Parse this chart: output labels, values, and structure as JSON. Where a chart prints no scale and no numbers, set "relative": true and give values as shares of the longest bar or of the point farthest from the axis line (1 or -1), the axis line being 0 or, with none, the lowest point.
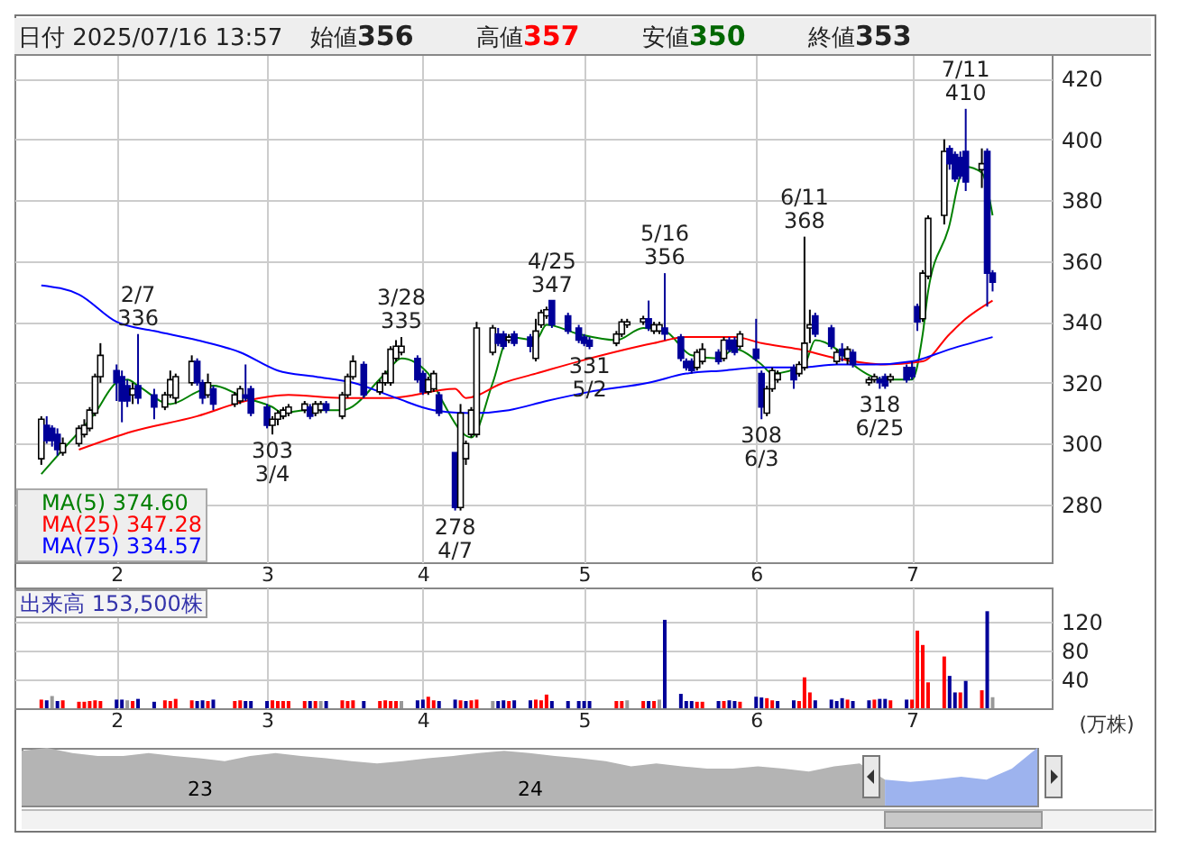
{
  "chart_data": [
    {
      "type": "candlestick",
      "title": "日付 2025/07/16 13:57",
      "x": [
        "2025-01-20",
        "2025-01-21",
        "2025-01-22",
        "2025-01-23",
        "2025-01-24",
        "2025-01-27",
        "2025-01-28",
        "2025-01-29",
        "2025-01-30",
        "2025-01-31",
        "2025-02-03",
        "2025-02-04",
        "2025-02-05",
        "2025-02-06",
        "2025-02-07",
        "2025-02-10",
        "2025-02-12",
        "2025-02-13",
        "2025-02-14",
        "2025-02-17",
        "2025-02-18",
        "2025-02-19",
        "2025-02-20",
        "2025-02-21",
        "2025-02-25",
        "2025-02-26",
        "2025-02-27",
        "2025-02-28",
        "2025-03-03",
        "2025-03-04",
        "2025-03-05",
        "2025-03-06",
        "2025-03-07",
        "2025-03-10",
        "2025-03-11",
        "2025-03-12",
        "2025-03-13",
        "2025-03-14",
        "2025-03-17",
        "2025-03-18",
        "2025-03-19",
        "2025-03-21",
        "2025-03-24",
        "2025-03-25",
        "2025-03-26",
        "2025-03-27",
        "2025-03-28",
        "2025-03-31",
        "2025-04-01",
        "2025-04-02",
        "2025-04-03",
        "2025-04-04",
        "2025-04-07",
        "2025-04-08",
        "2025-04-09",
        "2025-04-10",
        "2025-04-11",
        "2025-04-14",
        "2025-04-15",
        "2025-04-16",
        "2025-04-17",
        "2025-04-18",
        "2025-04-21",
        "2025-04-22",
        "2025-04-23",
        "2025-04-24",
        "2025-04-25",
        "2025-04-28",
        "2025-04-30",
        "2025-05-01",
        "2025-05-02",
        "2025-05-07",
        "2025-05-08",
        "2025-05-09",
        "2025-05-12",
        "2025-05-13",
        "2025-05-14",
        "2025-05-15",
        "2025-05-16",
        "2025-05-19",
        "2025-05-20",
        "2025-05-21",
        "2025-05-22",
        "2025-05-23",
        "2025-05-26",
        "2025-05-27",
        "2025-05-28",
        "2025-05-29",
        "2025-05-30",
        "2025-06-02",
        "2025-06-03",
        "2025-06-04",
        "2025-06-05",
        "2025-06-06",
        "2025-06-09",
        "2025-06-10",
        "2025-06-11",
        "2025-06-12",
        "2025-06-13",
        "2025-06-16",
        "2025-06-17",
        "2025-06-18",
        "2025-06-19",
        "2025-06-20",
        "2025-06-23",
        "2025-06-24",
        "2025-06-25",
        "2025-06-26",
        "2025-06-27",
        "2025-06-30",
        "2025-07-01",
        "2025-07-02",
        "2025-07-03",
        "2025-07-04",
        "2025-07-07",
        "2025-07-08",
        "2025-07-09",
        "2025-07-10",
        "2025-07-11",
        "2025-07-14",
        "2025-07-15",
        "2025-07-16"
      ],
      "ohlc": [
        [
          295,
          309,
          293,
          308
        ],
        [
          306,
          309,
          300,
          301
        ],
        [
          305,
          306,
          299,
          301
        ],
        [
          303,
          305,
          296,
          298
        ],
        [
          297,
          302,
          296,
          300
        ],
        [
          300,
          306,
          299,
          305
        ],
        [
          303,
          308,
          302,
          306
        ],
        [
          305,
          312,
          304,
          311
        ],
        [
          310,
          323,
          309,
          322
        ],
        [
          322,
          333,
          320,
          329
        ],
        [
          324,
          326,
          314,
          320
        ],
        [
          322,
          324,
          307,
          314
        ],
        [
          319,
          321,
          312,
          314
        ],
        [
          316,
          320,
          313,
          318
        ],
        [
          319,
          336,
          313,
          315
        ],
        [
          316,
          318,
          308,
          312
        ],
        [
          312,
          317,
          311,
          316
        ],
        [
          316,
          324,
          315,
          321
        ],
        [
          315,
          323,
          313,
          322
        ],
        [
          320,
          329,
          319,
          327
        ],
        [
          327,
          328,
          319,
          320
        ],
        [
          320,
          321,
          313,
          315
        ],
        [
          316,
          323,
          315,
          320
        ],
        [
          318,
          319,
          311,
          313
        ],
        [
          313,
          317,
          312,
          316
        ],
        [
          314,
          319,
          313,
          318
        ],
        [
          316,
          326,
          314,
          315
        ],
        [
          318,
          319,
          309,
          310
        ],
        [
          312,
          313,
          305,
          306
        ],
        [
          306,
          309,
          303,
          308
        ],
        [
          308,
          311,
          306,
          310
        ],
        [
          309,
          312,
          308,
          311
        ],
        [
          310,
          313,
          309,
          312
        ],
        [
          311,
          314,
          310,
          313
        ],
        [
          312,
          313,
          308,
          309
        ],
        [
          310,
          314,
          309,
          313
        ],
        [
          311,
          314,
          310,
          313
        ],
        [
          313,
          314,
          310,
          311
        ],
        [
          309,
          317,
          308,
          316
        ],
        [
          316,
          323,
          315,
          322
        ],
        [
          322,
          329,
          321,
          327
        ],
        [
          326,
          327,
          315,
          316
        ],
        [
          317,
          321,
          316,
          320
        ],
        [
          320,
          324,
          319,
          323
        ],
        [
          320,
          332,
          319,
          331
        ],
        [
          328,
          334,
          327,
          332
        ],
        [
          330,
          335,
          329,
          332
        ],
        [
          328,
          329,
          320,
          321
        ],
        [
          323,
          324,
          316,
          317
        ],
        [
          317,
          322,
          316,
          321
        ],
        [
          318,
          324,
          317,
          323
        ],
        [
          316,
          317,
          309,
          310
        ],
        [
          297,
          297,
          278,
          279
        ],
        [
          279,
          313,
          278,
          310
        ],
        [
          295,
          301,
          293,
          300
        ],
        [
          303,
          312,
          302,
          311
        ],
        [
          303,
          340,
          302,
          338
        ],
        [
          330,
          339,
          329,
          338
        ],
        [
          336,
          338,
          332,
          333
        ],
        [
          336,
          337,
          331,
          332
        ],
        [
          334,
          336,
          333,
          335
        ],
        [
          336,
          337,
          332,
          333
        ],
        [
          335,
          336,
          330,
          332
        ],
        [
          328,
          341,
          327,
          337
        ],
        [
          339,
          344,
          338,
          343
        ],
        [
          342,
          345,
          341,
          344
        ],
        [
          347,
          347,
          338,
          339
        ],
        [
          342,
          343,
          336,
          337
        ],
        [
          338,
          339,
          333,
          334
        ],
        [
          335,
          336,
          332,
          333
        ],
        [
          334,
          335,
          331,
          332
        ],
        [
          333,
          337,
          332,
          336
        ],
        [
          336,
          341,
          335,
          340
        ],
        [
          339,
          341,
          338,
          340
        ],
        [
          340,
          342,
          339,
          341
        ],
        [
          341,
          347,
          337,
          338
        ],
        [
          337,
          340,
          336,
          339
        ],
        [
          337,
          340,
          336,
          339
        ],
        [
          338,
          356,
          334,
          336
        ],
        [
          335,
          336,
          327,
          328
        ],
        [
          327,
          328,
          324,
          325
        ],
        [
          327,
          328,
          323,
          324
        ],
        [
          325,
          331,
          324,
          330
        ],
        [
          327,
          333,
          326,
          331
        ],
        [
          330,
          331,
          326,
          327
        ],
        [
          328,
          335,
          327,
          334
        ],
        [
          334,
          335,
          330,
          331
        ],
        [
          334,
          335,
          329,
          330
        ],
        [
          332,
          337,
          331,
          336
        ],
        [
          331,
          341,
          327,
          328
        ],
        [
          323,
          324,
          308,
          312
        ],
        [
          310,
          319,
          309,
          318
        ],
        [
          318,
          325,
          317,
          324
        ],
        [
          321,
          324,
          320,
          323
        ],
        [
          325,
          326,
          318,
          321
        ],
        [
          323,
          327,
          322,
          326
        ],
        [
          325,
          368,
          324,
          333
        ],
        [
          338,
          344,
          333,
          339
        ],
        [
          342,
          343,
          335,
          336
        ],
        [
          338,
          339,
          331,
          332
        ],
        [
          327,
          331,
          326,
          330
        ],
        [
          331,
          333,
          327,
          329
        ],
        [
          328,
          332,
          326,
          331
        ],
        [
          330,
          331,
          325,
          326
        ],
        [
          320,
          322,
          319,
          321
        ],
        [
          321,
          323,
          320,
          322
        ],
        [
          321,
          322,
          318,
          320
        ],
        [
          322,
          323,
          318,
          319
        ],
        [
          321,
          323,
          320,
          322
        ],
        [
          325,
          326,
          320,
          321
        ],
        [
          325,
          327,
          321,
          322
        ],
        [
          345,
          346,
          337,
          340
        ],
        [
          341,
          357,
          340,
          356
        ],
        [
          355,
          375,
          354,
          374
        ],
        [
          375,
          400,
          372,
          396
        ],
        [
          397,
          398,
          390,
          392
        ],
        [
          395,
          396,
          386,
          387
        ],
        [
          394,
          396,
          387,
          388
        ],
        [
          396,
          410,
          383,
          386
        ],
        [
          390,
          397,
          384,
          392
        ],
        [
          396,
          397,
          345,
          356
        ],
        [
          356,
          357,
          350,
          353
        ]
      ],
      "series": [
        {
          "name": "MA(5) 374.60",
          "type": "line",
          "color": "#008000",
          "x": [
            "2025-01-20",
            "2025-01-24",
            "2025-01-30",
            "2025-02-03",
            "2025-02-05",
            "2025-02-07",
            "2025-02-13",
            "2025-02-18",
            "2025-02-21",
            "2025-02-27",
            "2025-03-04",
            "2025-03-06",
            "2025-03-10",
            "2025-03-17",
            "2025-03-25",
            "2025-03-28",
            "2025-04-02",
            "2025-04-04",
            "2025-04-10",
            "2025-04-14",
            "2025-04-17",
            "2025-04-22",
            "2025-04-24",
            "2025-04-30",
            "2025-05-07",
            "2025-05-12",
            "2025-05-16",
            "2025-05-21",
            "2025-05-26",
            "2025-05-29",
            "2025-06-03",
            "2025-06-05",
            "2025-06-11",
            "2025-06-13",
            "2025-06-17",
            "2025-06-20",
            "2025-06-26",
            "2025-07-01",
            "2025-07-03",
            "2025-07-04",
            "2025-07-08",
            "2025-07-10",
            "2025-07-11",
            "2025-07-14",
            "2025-07-16"
          ],
          "values": [
            290,
            298,
            310,
            320,
            321,
            319,
            313,
            317,
            319,
            315,
            312,
            310,
            311,
            311,
            323,
            328,
            323,
            316,
            302,
            320,
            335,
            334,
            339,
            336,
            334,
            338,
            337,
            329,
            328,
            331,
            326,
            323,
            326,
            334,
            331,
            326,
            321,
            321,
            336,
            350,
            372,
            388,
            391,
            389,
            375
          ]
        },
        {
          "name": "MA(25) 347.28",
          "type": "line",
          "color": "#ff0000",
          "x": [
            "2025-01-27",
            "2025-02-06",
            "2025-02-18",
            "2025-02-27",
            "2025-03-07",
            "2025-03-17",
            "2025-03-26",
            "2025-04-07",
            "2025-04-09",
            "2025-04-16",
            "2025-04-22",
            "2025-04-30",
            "2025-05-14",
            "2025-05-20",
            "2025-05-29",
            "2025-06-03",
            "2025-06-10",
            "2025-06-17",
            "2025-06-26",
            "2025-07-03",
            "2025-07-08",
            "2025-07-11",
            "2025-07-16"
          ],
          "values": [
            298,
            304,
            309,
            314,
            316,
            315,
            315,
            318,
            315,
            320,
            323,
            327,
            333,
            335,
            335,
            333,
            331,
            328,
            326,
            327,
            336,
            341,
            347
          ]
        },
        {
          "name": "MA(75) 334.57",
          "type": "line",
          "color": "#0000ff",
          "x": [
            "2025-01-20",
            "2025-01-27",
            "2025-02-03",
            "2025-02-10",
            "2025-02-18",
            "2025-02-26",
            "2025-03-05",
            "2025-03-12",
            "2025-03-19",
            "2025-03-27",
            "2025-04-03",
            "2025-04-10",
            "2025-04-17",
            "2025-04-24",
            "2025-05-02",
            "2025-05-13",
            "2025-05-20",
            "2025-05-27",
            "2025-06-03",
            "2025-06-10",
            "2025-06-17",
            "2025-06-24",
            "2025-07-01",
            "2025-07-08",
            "2025-07-16"
          ],
          "values": [
            352,
            349,
            340,
            337,
            334,
            330,
            324,
            322,
            320,
            315,
            311,
            310,
            311,
            314,
            317,
            320,
            323,
            324,
            325,
            325,
            326,
            326,
            327,
            331,
            335
          ]
        }
      ],
      "ylim": [
        261,
        428
      ],
      "yticks": [
        280,
        300,
        320,
        340,
        360,
        380,
        400,
        420
      ],
      "xlim": [
        "2025-01-15",
        "2025-07-27"
      ],
      "xticks": [
        {
          "value": "2025-02-03",
          "label": "2"
        },
        {
          "value": "2025-03-03",
          "label": "3"
        },
        {
          "value": "2025-04-01",
          "label": "4"
        },
        {
          "value": "2025-05-01",
          "label": "5"
        },
        {
          "value": "2025-06-02",
          "label": "6"
        },
        {
          "value": "2025-07-01",
          "label": "7"
        }
      ],
      "grid": true,
      "legend": "bottom left",
      "annotations": [
        "始値356",
        "高値357",
        "安値350",
        "終値353",
        {
          "text": "2/7\n336",
          "x": "2025-02-07",
          "y": 336
        },
        {
          "text": "303\n3/4",
          "x": "2025-03-04",
          "y": 303
        },
        {
          "text": "3/28\n335",
          "x": "2025-03-28",
          "y": 335
        },
        {
          "text": "278\n4/7",
          "x": "2025-04-07",
          "y": 278
        },
        {
          "text": "4/25\n347",
          "x": "2025-04-25",
          "y": 347
        },
        {
          "text": "331\n5/2",
          "x": "2025-05-02",
          "y": 331
        },
        {
          "text": "5/16\n356",
          "x": "2025-05-16",
          "y": 356
        },
        {
          "text": "308\n6/3",
          "x": "2025-06-03",
          "y": 308
        },
        {
          "text": "6/11\n368",
          "x": "2025-06-11",
          "y": 368
        },
        {
          "text": "318\n6/25",
          "x": "2025-06-25",
          "y": 318
        },
        {
          "text": "7/11\n410",
          "x": "2025-07-11",
          "y": 410
        }
      ]
    },
    {
      "type": "bar",
      "ylabel": "(万株)",
      "annotations": [
        "出来高 153,500株"
      ],
      "x": [
        "2025-01-20",
        "2025-01-21",
        "2025-01-22",
        "2025-01-23",
        "2025-01-24",
        "2025-01-27",
        "2025-01-28",
        "2025-01-29",
        "2025-01-30",
        "2025-01-31",
        "2025-02-03",
        "2025-02-04",
        "2025-02-05",
        "2025-02-06",
        "2025-02-07",
        "2025-02-10",
        "2025-02-12",
        "2025-02-13",
        "2025-02-14",
        "2025-02-17",
        "2025-02-18",
        "2025-02-19",
        "2025-02-20",
        "2025-02-21",
        "2025-02-25",
        "2025-02-26",
        "2025-02-27",
        "2025-02-28",
        "2025-03-03",
        "2025-03-04",
        "2025-03-05",
        "2025-03-06",
        "2025-03-07",
        "2025-03-10",
        "2025-03-11",
        "2025-03-12",
        "2025-03-13",
        "2025-03-14",
        "2025-03-17",
        "2025-03-18",
        "2025-03-19",
        "2025-03-21",
        "2025-03-24",
        "2025-03-25",
        "2025-03-26",
        "2025-03-27",
        "2025-03-28",
        "2025-03-31",
        "2025-04-01",
        "2025-04-02",
        "2025-04-03",
        "2025-04-04",
        "2025-04-07",
        "2025-04-08",
        "2025-04-09",
        "2025-04-10",
        "2025-04-11",
        "2025-04-14",
        "2025-04-15",
        "2025-04-16",
        "2025-04-17",
        "2025-04-18",
        "2025-04-21",
        "2025-04-22",
        "2025-04-23",
        "2025-04-24",
        "2025-04-25",
        "2025-04-28",
        "2025-04-30",
        "2025-05-01",
        "2025-05-02",
        "2025-05-07",
        "2025-05-08",
        "2025-05-09",
        "2025-05-12",
        "2025-05-13",
        "2025-05-14",
        "2025-05-15",
        "2025-05-16",
        "2025-05-19",
        "2025-05-20",
        "2025-05-21",
        "2025-05-22",
        "2025-05-23",
        "2025-05-26",
        "2025-05-27",
        "2025-05-28",
        "2025-05-29",
        "2025-05-30",
        "2025-06-02",
        "2025-06-03",
        "2025-06-04",
        "2025-06-05",
        "2025-06-06",
        "2025-06-09",
        "2025-06-10",
        "2025-06-11",
        "2025-06-12",
        "2025-06-13",
        "2025-06-16",
        "2025-06-17",
        "2025-06-18",
        "2025-06-19",
        "2025-06-20",
        "2025-06-23",
        "2025-06-24",
        "2025-06-25",
        "2025-06-26",
        "2025-06-27",
        "2025-06-30",
        "2025-07-01",
        "2025-07-02",
        "2025-07-03",
        "2025-07-04",
        "2025-07-07",
        "2025-07-08",
        "2025-07-09",
        "2025-07-10",
        "2025-07-11",
        "2025-07-14",
        "2025-07-15",
        "2025-07-16"
      ],
      "values": [
        12,
        11,
        17,
        10,
        11,
        9,
        9,
        10,
        11,
        10,
        12,
        12,
        11,
        10,
        13,
        9,
        11,
        10,
        13,
        11,
        10,
        11,
        10,
        12,
        10,
        11,
        10,
        10,
        10,
        11,
        10,
        10,
        10,
        10,
        10,
        10,
        10,
        10,
        11,
        10,
        11,
        10,
        10,
        11,
        10,
        10,
        10,
        11,
        12,
        16,
        11,
        10,
        12,
        11,
        10,
        11,
        12,
        10,
        10,
        11,
        10,
        11,
        11,
        12,
        11,
        19,
        10,
        10,
        10,
        10,
        10,
        10,
        10,
        11,
        10,
        10,
        10,
        12,
        123,
        20,
        10,
        10,
        9,
        9,
        10,
        10,
        11,
        10,
        9,
        16,
        15,
        14,
        11,
        10,
        11,
        10,
        43,
        22,
        11,
        12,
        10,
        14,
        12,
        10,
        11,
        12,
        13,
        13,
        11,
        12,
        12,
        108,
        88,
        36,
        72,
        45,
        22,
        22,
        38,
        25,
        135,
        15.35
      ],
      "colors": [
        "#ff0000",
        "#000099",
        "#999999",
        "#000099",
        "#ff0000",
        "#ff0000",
        "#ff0000",
        "#ff0000",
        "#ff0000",
        "#ff0000",
        "#000099",
        "#000099",
        "#999999",
        "#ff0000",
        "#000099",
        "#000099",
        "#ff0000",
        "#ff0000",
        "#ff0000",
        "#ff0000",
        "#000099",
        "#000099",
        "#ff0000",
        "#000099",
        "#ff0000",
        "#ff0000",
        "#000099",
        "#000099",
        "#000099",
        "#ff0000",
        "#ff0000",
        "#ff0000",
        "#ff0000",
        "#ff0000",
        "#000099",
        "#ff0000",
        "#999999",
        "#000099",
        "#ff0000",
        "#ff0000",
        "#ff0000",
        "#000099",
        "#ff0000",
        "#ff0000",
        "#ff0000",
        "#ff0000",
        "#999999",
        "#000099",
        "#000099",
        "#ff0000",
        "#ff0000",
        "#000099",
        "#000099",
        "#ff0000",
        "#000099",
        "#ff0000",
        "#ff0000",
        "#999999",
        "#000099",
        "#000099",
        "#ff0000",
        "#000099",
        "#000099",
        "#ff0000",
        "#ff0000",
        "#ff0000",
        "#000099",
        "#000099",
        "#000099",
        "#000099",
        "#000099",
        "#ff0000",
        "#ff0000",
        "#999999",
        "#ff0000",
        "#000099",
        "#ff0000",
        "#999999",
        "#000099",
        "#000099",
        "#000099",
        "#000099",
        "#ff0000",
        "#ff0000",
        "#000099",
        "#ff0000",
        "#000099",
        "#000099",
        "#ff0000",
        "#000099",
        "#000099",
        "#ff0000",
        "#ff0000",
        "#000099",
        "#000099",
        "#ff0000",
        "#ff0000",
        "#ff0000",
        "#000099",
        "#000099",
        "#000099",
        "#000099",
        "#ff0000",
        "#000099",
        "#000099",
        "#ff0000",
        "#000099",
        "#000099",
        "#ff0000",
        "#000099",
        "#ff0000",
        "#ff0000",
        "#ff0000",
        "#ff0000",
        "#ff0000",
        "#000099",
        "#000099",
        "#ff0000",
        "#000099",
        "#ff0000",
        "#000099",
        "#999999"
      ],
      "ylim": [
        0,
        168
      ],
      "yticks": [
        40,
        80,
        120
      ],
      "xlim": [
        "2025-01-15",
        "2025-07-27"
      ],
      "xticks": [
        {
          "value": "2025-02-03",
          "label": "2"
        },
        {
          "value": "2025-03-03",
          "label": "3"
        },
        {
          "value": "2025-04-01",
          "label": "4"
        },
        {
          "value": "2025-05-01",
          "label": "5"
        },
        {
          "value": "2025-06-02",
          "label": "6"
        },
        {
          "value": "2025-07-01",
          "label": "7"
        }
      ],
      "grid": true
    },
    {
      "type": "area",
      "relative": true,
      "categories": [
        null,
        null,
        null,
        null,
        null,
        null,
        null,
        "23",
        null,
        null,
        null,
        null,
        null,
        null,
        null,
        null,
        null,
        null,
        null,
        null,
        "24",
        null,
        null,
        null,
        null,
        null,
        null,
        null,
        null,
        null,
        null,
        null,
        null,
        null,
        null,
        null,
        null,
        null,
        null,
        null,
        null
      ],
      "series": [
        {
          "color": "#b4b4b4",
          "values": [
            0.95,
            1,
            0.91,
            0.86,
            0.86,
            0.91,
            0.86,
            0.82,
            0.77,
            0.86,
            0.91,
            0.86,
            0.82,
            0.77,
            0.73,
            0.77,
            0.82,
            0.86,
            0.91,
            0.95,
            0.91,
            0.86,
            0.82,
            0.77,
            0.68,
            0.73,
            0.68,
            0.64,
            0.64,
            0.68,
            0.64,
            0.59,
            0.68,
            0.73,
            0.45,
            null,
            null,
            null,
            null,
            null,
            null
          ]
        },
        {
          "color": "#9db3ee",
          "values": [
            null,
            null,
            null,
            null,
            null,
            null,
            null,
            null,
            null,
            null,
            null,
            null,
            null,
            null,
            null,
            null,
            null,
            null,
            null,
            null,
            null,
            null,
            null,
            null,
            null,
            null,
            null,
            null,
            null,
            null,
            null,
            null,
            null,
            null,
            0.45,
            0.41,
            0.45,
            0.5,
            0.45,
            0.64,
            1
          ]
        }
      ]
    }
  ]
}
